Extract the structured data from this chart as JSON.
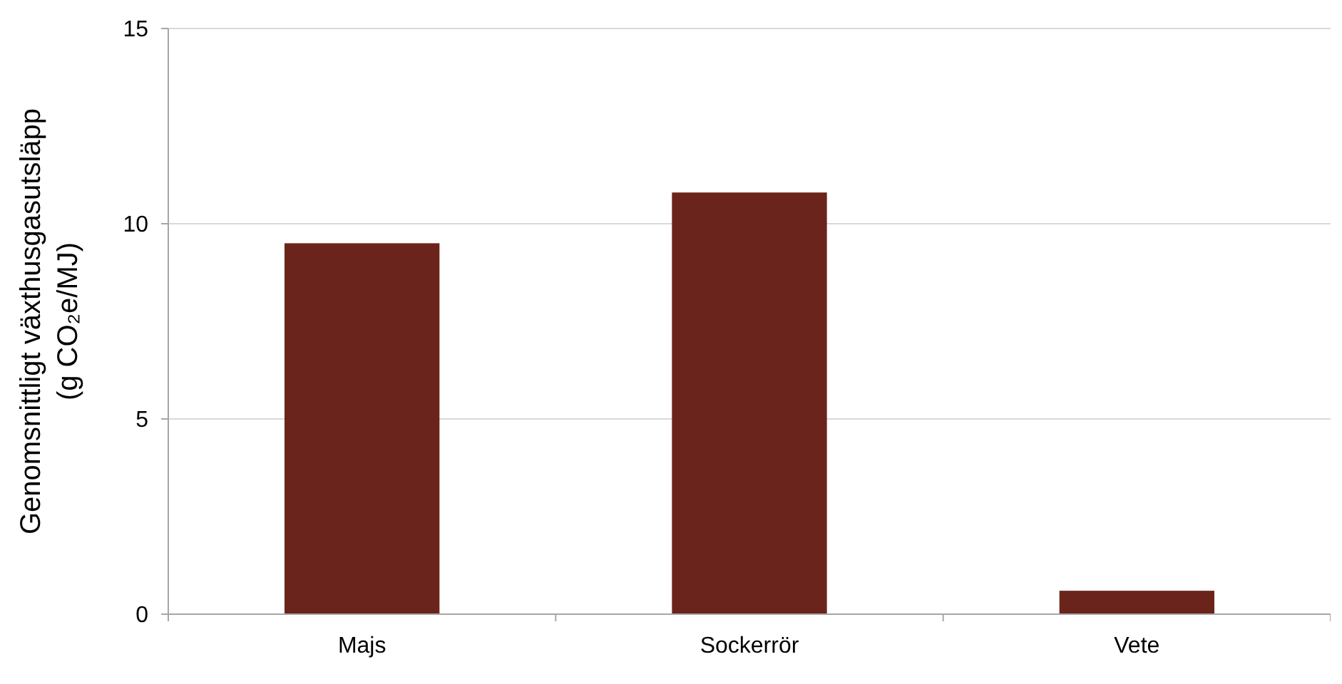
{
  "chart_data": {
    "type": "bar",
    "ylabel": "Genomsnittligt växthusgasutsläpp\n(g CO₂e/MJ)",
    "categories": [
      "Majs",
      "Sockerrör",
      "Vete"
    ],
    "values": [
      9.5,
      10.8,
      0.6
    ],
    "color": "#6b241b",
    "ylim": [
      0,
      15
    ],
    "yticks": [
      0,
      5,
      10,
      15
    ],
    "grid": "y"
  }
}
